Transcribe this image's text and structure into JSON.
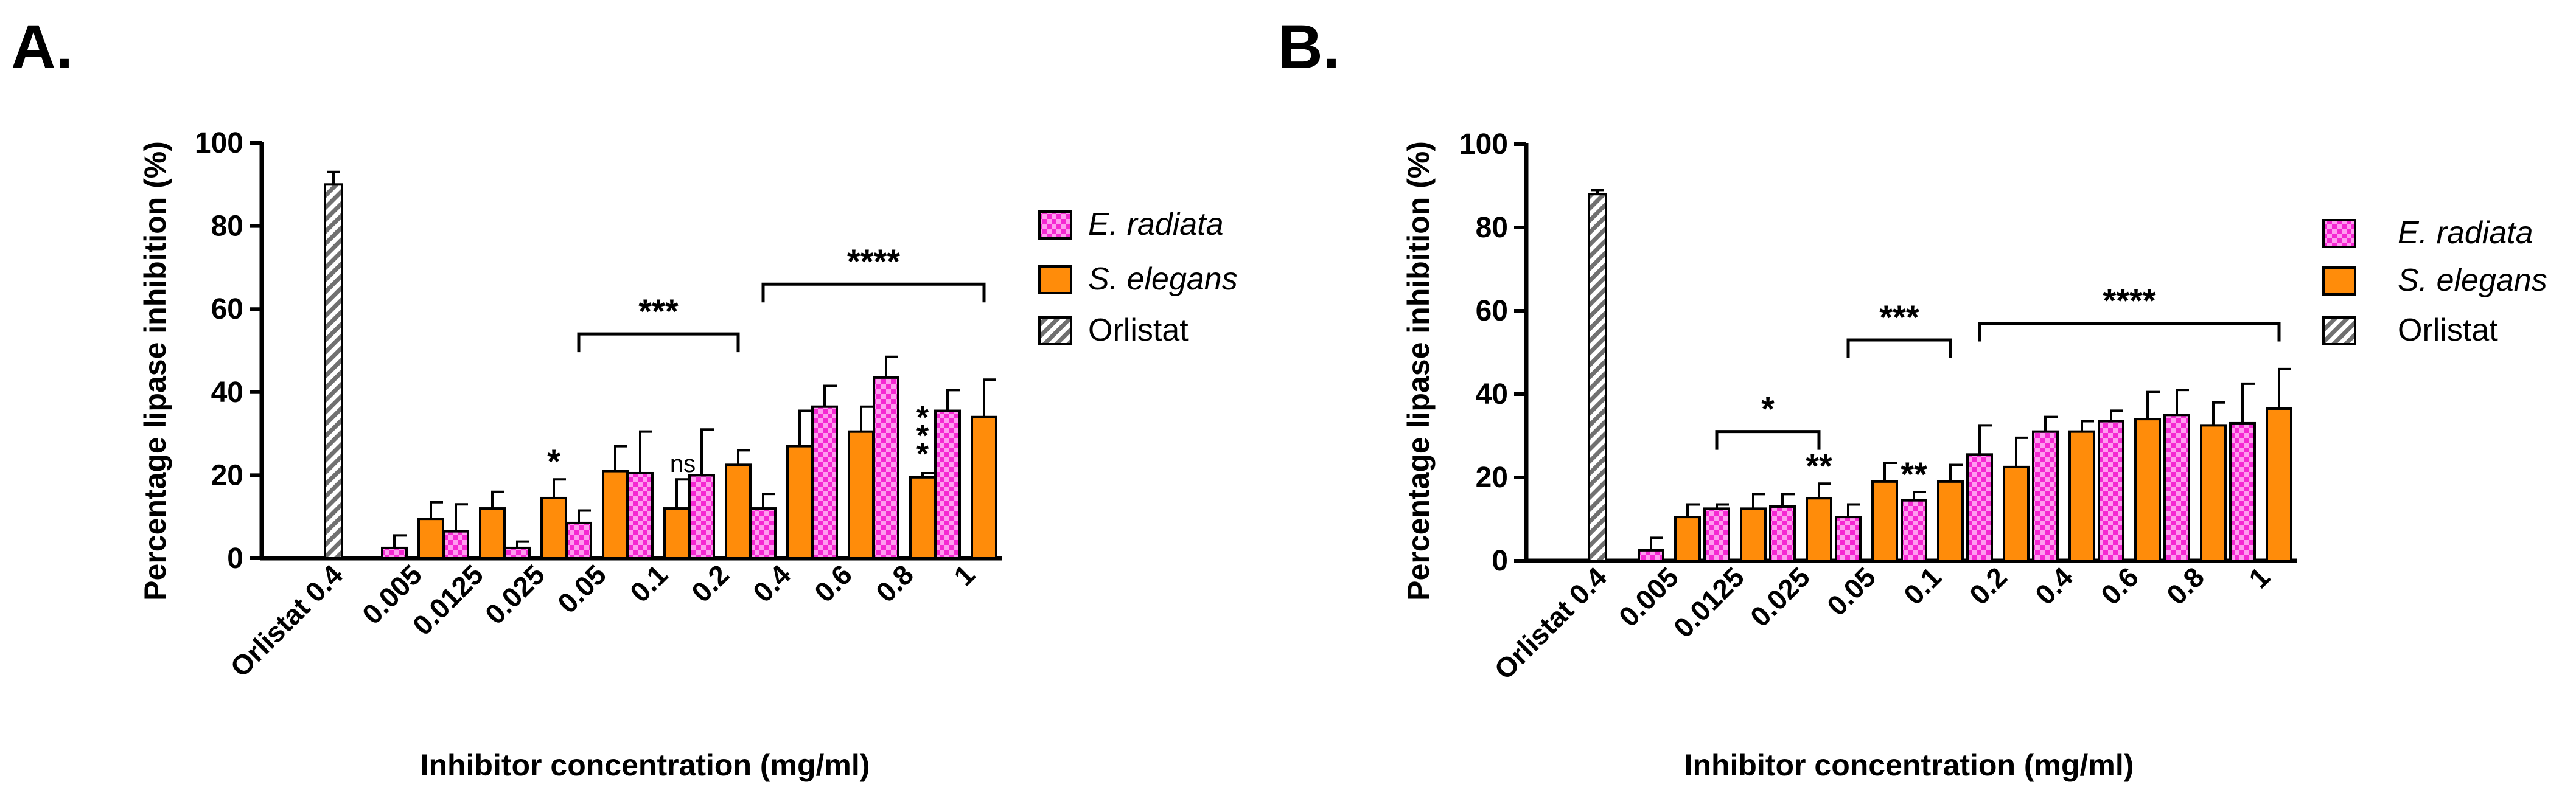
{
  "colors": {
    "er_fill": "#f528d2",
    "er_check": "#ff9cf0",
    "se_fill": "#ff8c0a",
    "orlistat_bg": "#ffffff",
    "orlistat_stripe": "#707070",
    "axis": "#000000"
  },
  "chart_data": [
    {
      "panel_label": "A.",
      "type": "bar",
      "ylabel": "Percentage lipase inhibition (%)",
      "xlabel": "Inhibitor concentration (mg/ml)",
      "ylim": [
        0,
        100
      ],
      "yticks": [
        "0",
        "20",
        "40",
        "60",
        "80",
        "100"
      ],
      "ytick_values": [
        0,
        20,
        40,
        60,
        80,
        100
      ],
      "categories": [
        "Orlistat 0.4",
        "0.005",
        "0.0125",
        "0.025",
        "0.05",
        "0.1",
        "0.2",
        "0.4",
        "0.6",
        "0.8",
        "1"
      ],
      "legend": [
        "E. radiata",
        "S. elegans",
        "Orlistat"
      ],
      "orlistat": {
        "value": 90,
        "err": 3
      },
      "series": [
        {
          "name": "E. radiata",
          "values": [
            null,
            2.5,
            6.5,
            2.5,
            8.5,
            20.5,
            20,
            12,
            36.5,
            43.5,
            35.5
          ],
          "errors": [
            null,
            3,
            6.5,
            1.5,
            3,
            10,
            11,
            3.5,
            5,
            5,
            5
          ]
        },
        {
          "name": "S. elegans",
          "values": [
            null,
            9.5,
            12,
            14.5,
            21,
            12,
            22.5,
            27,
            30.5,
            19.5,
            34
          ],
          "errors": [
            null,
            4,
            4,
            4.5,
            6,
            7,
            3.5,
            8.5,
            6,
            1,
            9
          ]
        }
      ],
      "annotations": {
        "stars": [
          {
            "text": "*",
            "category": 3,
            "series": 1
          },
          {
            "text": "ns",
            "category": 5,
            "series": 1
          },
          {
            "text": "*",
            "category": 9,
            "series": 1,
            "stack": 3
          }
        ],
        "brackets": [
          {
            "text": "***",
            "from": 4,
            "to": 6,
            "level": 54
          },
          {
            "text": "****",
            "from": 7,
            "to": 10,
            "level": 66
          }
        ]
      }
    },
    {
      "panel_label": "B.",
      "type": "bar",
      "ylabel": "Percentage lipase inhibition (%)",
      "xlabel": "Inhibitor concentration (mg/ml)",
      "ylim": [
        0,
        100
      ],
      "yticks": [
        "0",
        "20",
        "40",
        "60",
        "80",
        "100"
      ],
      "ytick_values": [
        0,
        20,
        40,
        60,
        80,
        100
      ],
      "categories": [
        "Orlistat 0.4",
        "0.005",
        "0.0125",
        "0.025",
        "0.05",
        "0.1",
        "0.2",
        "0.4",
        "0.6",
        "0.8",
        "1"
      ],
      "legend": [
        "E. radiata",
        "S. elegans",
        "Orlistat"
      ],
      "orlistat": {
        "value": 88,
        "err": 1
      },
      "series": [
        {
          "name": "E. radiata",
          "values": [
            null,
            2.5,
            12.5,
            13,
            10.5,
            14.5,
            25.5,
            31,
            33.5,
            35,
            33
          ],
          "errors": [
            null,
            3,
            1,
            3,
            3,
            2,
            7,
            3.5,
            2.5,
            6,
            9.5
          ]
        },
        {
          "name": "S. elegans",
          "values": [
            null,
            10.5,
            12.5,
            15,
            19,
            19,
            22.5,
            31,
            34,
            32.5,
            36.5
          ],
          "errors": [
            null,
            3,
            3.5,
            3.5,
            4.5,
            4,
            7,
            2.5,
            6.5,
            5.5,
            9.5
          ]
        }
      ],
      "annotations": {
        "stars": [
          {
            "text": "**",
            "category": 3,
            "series": 1
          },
          {
            "text": "**",
            "category": 5,
            "series": 0
          }
        ],
        "brackets": [
          {
            "text": "*",
            "from": 2,
            "to": 3,
            "level": 31
          },
          {
            "text": "***",
            "from": 4,
            "to": 5,
            "level": 53
          },
          {
            "text": "****",
            "from": 6,
            "to": 10,
            "level": 57
          }
        ]
      }
    }
  ]
}
